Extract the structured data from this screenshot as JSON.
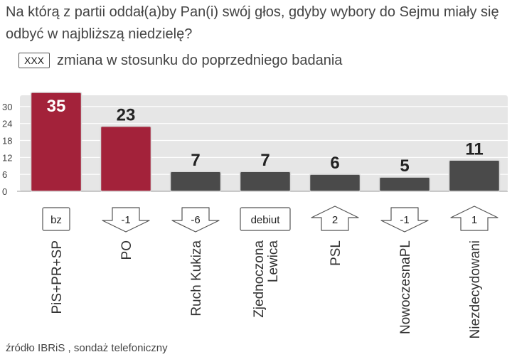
{
  "question": "Na którą z partii oddał(a)by Pan(i) swój głos, gdyby wybory do Sejmu miały się odbyć w najbliższą niedzielę?",
  "legend": {
    "box_label": "XXX",
    "text": "zmiana w stosunku do poprzedniego badania"
  },
  "source": "źródło IBRiS , sondaż telefoniczny",
  "colors": {
    "highlight": "#a3223a",
    "default": "#4a4a4a",
    "plot_bg": "#e6e6e6"
  },
  "chart_data": {
    "type": "bar",
    "title": "",
    "xlabel": "",
    "ylabel": "",
    "ylim": [
      0,
      36
    ],
    "yticks": [
      0,
      6,
      12,
      18,
      24,
      30
    ],
    "grid": true,
    "categories": [
      "PiS+PR+SP",
      "PO",
      "Ruch Kukiza",
      "Zjednoczona Lewica",
      "PSL",
      "NowoczesnaPL",
      "Niezdecydowani"
    ],
    "category_lines": [
      [
        "PiS+PR+SP"
      ],
      [
        "PO"
      ],
      [
        "Ruch Kukiza"
      ],
      [
        "Zjednoczona",
        "Lewica"
      ],
      [
        "PSL"
      ],
      [
        "NowoczesnaPL"
      ],
      [
        "Niezdecydowani"
      ]
    ],
    "values": [
      35,
      23,
      7,
      7,
      6,
      5,
      11
    ],
    "value_labels": [
      "35",
      "23",
      "7",
      "7",
      "6",
      "5",
      "11"
    ],
    "highlight": [
      true,
      true,
      false,
      false,
      false,
      false,
      false
    ],
    "changes": [
      {
        "label": "bz",
        "type": "none"
      },
      {
        "label": "-1",
        "type": "down"
      },
      {
        "label": "-6",
        "type": "down"
      },
      {
        "label": "debiut",
        "type": "none"
      },
      {
        "label": "2",
        "type": "up"
      },
      {
        "label": "-1",
        "type": "down"
      },
      {
        "label": "1",
        "type": "up"
      }
    ]
  }
}
